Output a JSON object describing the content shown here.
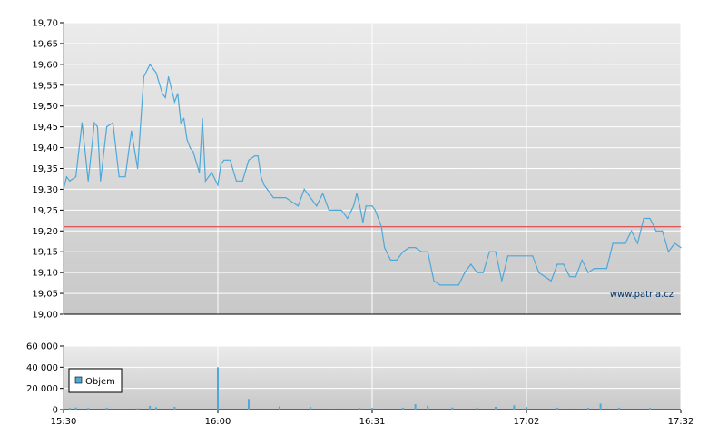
{
  "watermark": "www.patria.cz",
  "colors": {
    "price_line": "#4ea8d8",
    "reference_line": "#e03030",
    "volume_bar": "#4ea8d8",
    "grid": "#ffffff",
    "vgrid": "#ffffff",
    "bg_top": "#ebebeb",
    "bg_bottom": "#c8c8c8"
  },
  "chart_data": [
    {
      "type": "line",
      "ylim": [
        19.0,
        19.7
      ],
      "yticks": [
        "19,00",
        "19,05",
        "19,10",
        "19,15",
        "19,20",
        "19,25",
        "19,30",
        "19,35",
        "19,40",
        "19,45",
        "19,50",
        "19,55",
        "19,60",
        "19,65",
        "19,70"
      ],
      "xlim": [
        0,
        100
      ],
      "x_tick_positions": [
        0,
        25,
        50,
        75,
        100
      ],
      "x_tick_labels": [
        "15:30",
        "16:00",
        "16:31",
        "17:02",
        "17:32"
      ],
      "reference_value": 19.21,
      "grid": true,
      "x": [
        0,
        0.5,
        1,
        2,
        3,
        4,
        5,
        5.5,
        6,
        7,
        8,
        9,
        10,
        11,
        12,
        13,
        14,
        15,
        16,
        16.5,
        17,
        18,
        18.5,
        19,
        19.5,
        20,
        20.5,
        21,
        22,
        22.5,
        23,
        24,
        25,
        25.5,
        26,
        26.5,
        27,
        28,
        29,
        30,
        31,
        31.5,
        32,
        32.5,
        33,
        34,
        35,
        35.5,
        36,
        37,
        38,
        39,
        40,
        41,
        42,
        43,
        44,
        45,
        46,
        47,
        47.5,
        48,
        48.5,
        49,
        50,
        50.5,
        51,
        51.5,
        52,
        53,
        54,
        55,
        56,
        57,
        58,
        59,
        60,
        61,
        62,
        63,
        64,
        65,
        66,
        67,
        68,
        69,
        70,
        71,
        72,
        73,
        74,
        75,
        76,
        77,
        78,
        79,
        80,
        81,
        82,
        83,
        84,
        85,
        86,
        87,
        88,
        89,
        90,
        91,
        92,
        93,
        94,
        95,
        96,
        97,
        98,
        99,
        100
      ],
      "y": [
        19.3,
        19.33,
        19.32,
        19.33,
        19.46,
        19.32,
        19.46,
        19.45,
        19.32,
        19.45,
        19.46,
        19.33,
        19.33,
        19.44,
        19.35,
        19.57,
        19.6,
        19.58,
        19.53,
        19.52,
        19.57,
        19.51,
        19.53,
        19.46,
        19.47,
        19.42,
        19.4,
        19.39,
        19.34,
        19.47,
        19.32,
        19.34,
        19.31,
        19.36,
        19.37,
        19.37,
        19.37,
        19.32,
        19.32,
        19.37,
        19.38,
        19.38,
        19.33,
        19.31,
        19.3,
        19.28,
        19.28,
        19.28,
        19.28,
        19.27,
        19.26,
        19.3,
        19.28,
        19.26,
        19.29,
        19.25,
        19.25,
        19.25,
        19.23,
        19.26,
        19.29,
        19.26,
        19.22,
        19.26,
        19.26,
        19.25,
        19.23,
        19.21,
        19.16,
        19.13,
        19.13,
        19.15,
        19.16,
        19.16,
        19.15,
        19.15,
        19.08,
        19.07,
        19.07,
        19.07,
        19.07,
        19.1,
        19.12,
        19.1,
        19.1,
        19.15,
        19.15,
        19.08,
        19.14,
        19.14,
        19.14,
        19.14,
        19.14,
        19.1,
        19.09,
        19.08,
        19.12,
        19.12,
        19.09,
        19.09,
        19.13,
        19.1,
        19.11,
        19.11,
        19.11,
        19.17,
        19.17,
        19.17,
        19.2,
        19.17,
        19.23,
        19.23,
        19.2,
        19.2,
        19.15,
        19.17,
        19.16
      ]
    },
    {
      "type": "bar",
      "ylim": [
        0,
        60000
      ],
      "yticks": [
        "0",
        "20 000",
        "40 000",
        "60 000"
      ],
      "xlim": [
        0,
        100
      ],
      "x_tick_positions": [
        0,
        25,
        50,
        75,
        100
      ],
      "x_tick_labels": [
        "15:30",
        "16:00",
        "16:31",
        "17:02",
        "17:32"
      ],
      "grid": true,
      "legend": [
        "Objem"
      ],
      "legend_placement": "top-left",
      "x": [
        1,
        2,
        4,
        7,
        12,
        14,
        15,
        18,
        25,
        30,
        35,
        40,
        48,
        50,
        55,
        57,
        59,
        63,
        67,
        70,
        73,
        75,
        80,
        85,
        87,
        90,
        95
      ],
      "values": [
        1500,
        2000,
        1500,
        1800,
        1200,
        3500,
        2200,
        2600,
        40000,
        10000,
        3000,
        2400,
        1500,
        1600,
        1800,
        5000,
        3600,
        2000,
        1900,
        2600,
        4000,
        2400,
        1800,
        1600,
        5600,
        1800,
        1500
      ]
    }
  ]
}
